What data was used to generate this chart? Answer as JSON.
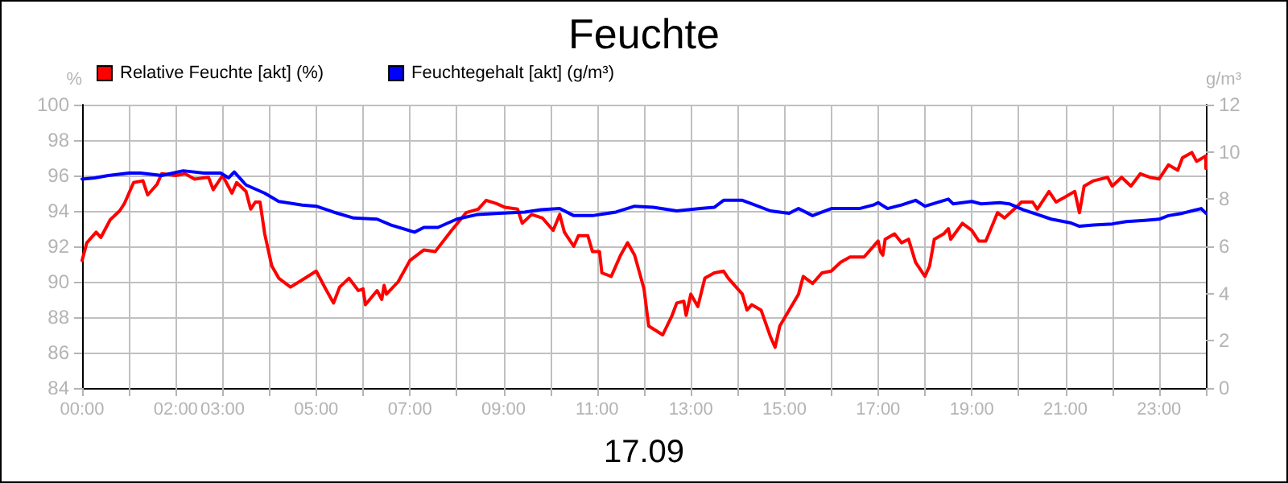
{
  "chart_data": {
    "type": "line",
    "title": "Feuchte",
    "xlabel": "17.09",
    "ylabel": "%",
    "y2label": "g/m³",
    "xlim": [
      0,
      24
    ],
    "xticks": [
      {
        "value": 0,
        "label": "00:00"
      },
      {
        "value": 1,
        "label": null
      },
      {
        "value": 2,
        "label": "02:00"
      },
      {
        "value": 3,
        "label": "03:00"
      },
      {
        "value": 4,
        "label": null
      },
      {
        "value": 5,
        "label": "05:00"
      },
      {
        "value": 6,
        "label": null
      },
      {
        "value": 7,
        "label": "07:00"
      },
      {
        "value": 8,
        "label": null
      },
      {
        "value": 9,
        "label": "09:00"
      },
      {
        "value": 10,
        "label": null
      },
      {
        "value": 11,
        "label": "11:00"
      },
      {
        "value": 12,
        "label": null
      },
      {
        "value": 13,
        "label": "13:00"
      },
      {
        "value": 14,
        "label": null
      },
      {
        "value": 15,
        "label": "15:00"
      },
      {
        "value": 16,
        "label": null
      },
      {
        "value": 17,
        "label": "17:00"
      },
      {
        "value": 18,
        "label": null
      },
      {
        "value": 19,
        "label": "19:00"
      },
      {
        "value": 20,
        "label": null
      },
      {
        "value": 21,
        "label": "21:00"
      },
      {
        "value": 22,
        "label": null
      },
      {
        "value": 23,
        "label": "23:00"
      },
      {
        "value": 24,
        "label": null
      }
    ],
    "ylim": [
      84,
      100
    ],
    "yticks": [
      84,
      86,
      88,
      90,
      92,
      94,
      96,
      98,
      100
    ],
    "y2lim": [
      0,
      12
    ],
    "y2ticks": [
      0,
      2,
      4,
      6,
      8,
      10,
      12
    ],
    "grid": true,
    "legend": "top left",
    "marker": "none",
    "line_style": "solid",
    "series": [
      {
        "name": "Relative Feuchte [akt] (%)",
        "color": "#ff0000",
        "x": [
          0,
          0.1,
          0.3,
          0.4,
          0.6,
          0.8,
          0.9,
          1.0,
          1.1,
          1.3,
          1.4,
          1.6,
          1.7,
          2.0,
          2.2,
          2.4,
          2.7,
          2.8,
          3.0,
          3.2,
          3.3,
          3.5,
          3.6,
          3.7,
          3.8,
          3.9,
          4.05,
          4.2,
          4.45,
          4.7,
          5.0,
          5.2,
          5.37,
          5.5,
          5.7,
          5.9,
          6.0,
          6.05,
          6.3,
          6.4,
          6.45,
          6.5,
          6.75,
          7.0,
          7.3,
          7.54,
          7.89,
          8.2,
          8.46,
          8.63,
          8.86,
          9.03,
          9.3,
          9.4,
          9.6,
          9.83,
          10.06,
          10.2,
          10.3,
          10.5,
          10.6,
          10.8,
          10.9,
          11.05,
          11.1,
          11.3,
          11.5,
          11.65,
          11.8,
          12.0,
          12.1,
          12.4,
          12.6,
          12.7,
          12.85,
          12.9,
          13.0,
          13.15,
          13.3,
          13.5,
          13.7,
          13.8,
          14.1,
          14.2,
          14.3,
          14.5,
          14.7,
          14.8,
          14.9,
          15.1,
          15.3,
          15.4,
          15.6,
          15.8,
          16.0,
          16.2,
          16.4,
          16.7,
          17.0,
          17.05,
          17.1,
          17.15,
          17.35,
          17.5,
          17.65,
          17.8,
          18.0,
          18.1,
          18.2,
          18.4,
          18.5,
          18.55,
          18.8,
          19.0,
          19.15,
          19.3,
          19.55,
          19.7,
          19.95,
          20.06,
          20.3,
          20.4,
          20.65,
          20.8,
          21.0,
          21.2,
          21.3,
          21.4,
          21.6,
          21.9,
          22.0,
          22.2,
          22.4,
          22.6,
          22.8,
          23.0,
          23.2,
          23.4,
          23.5,
          23.7,
          23.8,
          24.0,
          24.0
        ],
        "values": [
          91.2,
          92.2,
          92.8,
          92.5,
          93.5,
          94.0,
          94.4,
          95.0,
          95.6,
          95.7,
          94.9,
          95.5,
          96.1,
          96.0,
          96.1,
          95.8,
          95.9,
          95.2,
          96.0,
          95.0,
          95.6,
          95.1,
          94.1,
          94.5,
          94.5,
          92.7,
          90.9,
          90.2,
          89.7,
          90.1,
          90.6,
          89.6,
          88.8,
          89.7,
          90.2,
          89.5,
          89.6,
          88.7,
          89.5,
          89.0,
          89.8,
          89.3,
          90.0,
          91.2,
          91.8,
          91.7,
          92.9,
          93.9,
          94.1,
          94.6,
          94.4,
          94.2,
          94.1,
          93.3,
          93.8,
          93.6,
          92.9,
          93.8,
          92.8,
          92.0,
          92.6,
          92.6,
          91.7,
          91.7,
          90.5,
          90.3,
          91.5,
          92.2,
          91.5,
          89.6,
          87.5,
          87.0,
          88.1,
          88.8,
          88.9,
          88.1,
          89.3,
          88.6,
          90.2,
          90.5,
          90.6,
          90.2,
          89.3,
          88.4,
          88.7,
          88.4,
          86.9,
          86.3,
          87.5,
          88.4,
          89.3,
          90.3,
          89.9,
          90.5,
          90.6,
          91.1,
          91.4,
          91.4,
          92.3,
          91.7,
          91.5,
          92.4,
          92.7,
          92.2,
          92.4,
          91.1,
          90.3,
          90.9,
          92.4,
          92.7,
          93.0,
          92.4,
          93.3,
          92.9,
          92.3,
          92.3,
          93.9,
          93.6,
          94.2,
          94.5,
          94.5,
          94.1,
          95.1,
          94.5,
          94.8,
          95.1,
          93.9,
          95.4,
          95.7,
          95.9,
          95.4,
          95.9,
          95.4,
          96.1,
          95.9,
          95.8,
          96.6,
          96.3,
          97.0,
          97.3,
          96.8,
          97.1,
          96.4
        ]
      },
      {
        "name": "Feuchtegehalt [akt] (g/m³)",
        "color": "#0000ff",
        "axis": "y2",
        "x": [
          0,
          0.27,
          0.56,
          1.0,
          1.25,
          1.7,
          2.16,
          2.6,
          2.96,
          3.13,
          3.25,
          3.5,
          3.9,
          4.2,
          4.7,
          5.0,
          5.37,
          5.8,
          6.3,
          6.6,
          7.1,
          7.3,
          7.6,
          8.0,
          8.45,
          8.9,
          9.45,
          9.8,
          10.2,
          10.5,
          10.9,
          11.4,
          11.8,
          12.2,
          12.7,
          13.2,
          13.5,
          13.7,
          14.1,
          14.3,
          14.7,
          15.1,
          15.3,
          15.6,
          16.0,
          16.4,
          16.6,
          16.9,
          17.0,
          17.2,
          17.5,
          17.8,
          18.0,
          18.5,
          18.6,
          19.0,
          19.2,
          19.6,
          19.8,
          20.1,
          20.4,
          20.7,
          21.1,
          21.3,
          21.6,
          22.0,
          22.3,
          22.7,
          23.0,
          23.2,
          23.5,
          23.7,
          23.9,
          24.0
        ],
        "values": [
          8.85,
          8.9,
          9.0,
          9.1,
          9.1,
          9.0,
          9.2,
          9.1,
          9.1,
          8.9,
          9.15,
          8.6,
          8.25,
          7.9,
          7.75,
          7.7,
          7.45,
          7.2,
          7.15,
          6.9,
          6.6,
          6.8,
          6.8,
          7.15,
          7.35,
          7.4,
          7.45,
          7.55,
          7.6,
          7.3,
          7.3,
          7.45,
          7.7,
          7.65,
          7.5,
          7.6,
          7.65,
          7.95,
          7.95,
          7.8,
          7.5,
          7.4,
          7.6,
          7.3,
          7.6,
          7.6,
          7.6,
          7.75,
          7.85,
          7.6,
          7.75,
          7.95,
          7.7,
          8.0,
          7.8,
          7.9,
          7.8,
          7.85,
          7.8,
          7.55,
          7.35,
          7.15,
          7.0,
          6.85,
          6.9,
          6.95,
          7.05,
          7.1,
          7.15,
          7.3,
          7.4,
          7.5,
          7.6,
          7.4
        ]
      }
    ]
  }
}
